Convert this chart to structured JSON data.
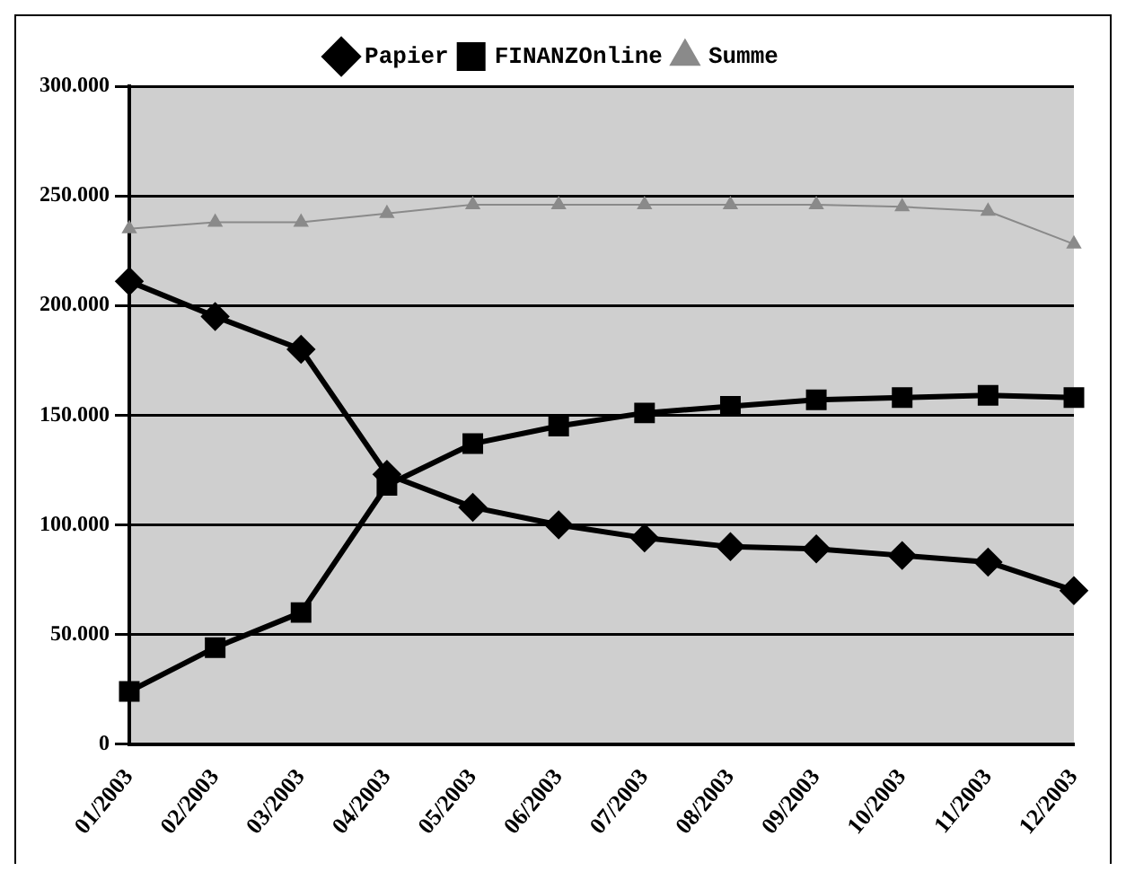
{
  "chart_data": {
    "type": "line",
    "categories": [
      "01/2003",
      "02/2003",
      "03/2003",
      "04/2003",
      "05/2003",
      "06/2003",
      "07/2003",
      "08/2003",
      "09/2003",
      "10/2003",
      "11/2003",
      "12/2003"
    ],
    "series": [
      {
        "name": "Papier",
        "color": "#000000",
        "marker": "diamond",
        "values": [
          211000,
          195000,
          180000,
          123000,
          108000,
          100000,
          94000,
          90000,
          89000,
          86000,
          83000,
          70000
        ]
      },
      {
        "name": "FINANZOnline",
        "color": "#000000",
        "marker": "square",
        "values": [
          24000,
          44000,
          60000,
          118000,
          137000,
          145000,
          151000,
          154000,
          157000,
          158000,
          159000,
          158000
        ]
      },
      {
        "name": "Summe",
        "color": "#8a8a8a",
        "marker": "triangle",
        "values": [
          235000,
          238000,
          238000,
          242000,
          246000,
          246000,
          246000,
          246000,
          246000,
          245000,
          243000,
          228000
        ]
      }
    ],
    "ylim": [
      0,
      300000
    ],
    "yticks": [
      {
        "value": 0,
        "label": "0"
      },
      {
        "value": 50000,
        "label": "50.000"
      },
      {
        "value": 100000,
        "label": "100.000"
      },
      {
        "value": 150000,
        "label": "150.000"
      },
      {
        "value": 200000,
        "label": "200.000"
      },
      {
        "value": 250000,
        "label": "250.000"
      },
      {
        "value": 300000,
        "label": "300.000"
      }
    ],
    "grid": "y",
    "legend": "top"
  }
}
